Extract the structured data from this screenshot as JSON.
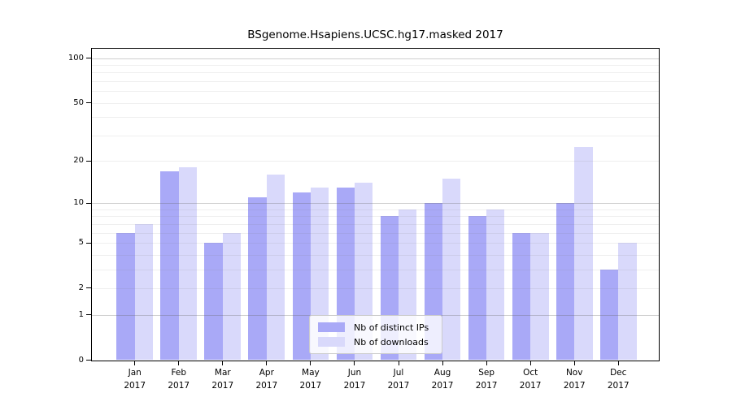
{
  "chart_data": {
    "type": "bar",
    "title": "BSgenome.Hsapiens.UCSC.hg17.masked 2017",
    "categories": [
      "Jan 2017",
      "Feb 2017",
      "Mar 2017",
      "Apr 2017",
      "May 2017",
      "Jun 2017",
      "Jul 2017",
      "Aug 2017",
      "Sep 2017",
      "Oct 2017",
      "Nov 2017",
      "Dec 2017"
    ],
    "series": [
      {
        "name": "Nb of distinct IPs",
        "color": "#a9a9f7",
        "values": [
          6,
          17,
          5,
          11,
          12,
          13,
          8,
          10,
          8,
          6,
          10,
          3
        ]
      },
      {
        "name": "Nb of downloads",
        "color": "#d9d9fb",
        "values": [
          7,
          18,
          6,
          16,
          13,
          14,
          9,
          15,
          9,
          6,
          25,
          5
        ]
      }
    ],
    "yticks": [
      0,
      1,
      2,
      5,
      10,
      20,
      50,
      100
    ],
    "minor_gridlines": [
      2,
      3,
      4,
      5,
      6,
      7,
      8,
      9,
      20,
      30,
      40,
      50,
      60,
      70,
      80,
      90
    ],
    "major_gridlines": [
      1,
      10,
      100
    ],
    "yscale": "log1p",
    "ylim": [
      0,
      100
    ],
    "xlabel": "",
    "ylabel": "",
    "grid": "horizontal minor+major, drawn over bars",
    "legend_position": "lower center inside plot"
  },
  "legend": {
    "items": [
      {
        "label": "Nb of distinct IPs"
      },
      {
        "label": "Nb of downloads"
      }
    ]
  }
}
